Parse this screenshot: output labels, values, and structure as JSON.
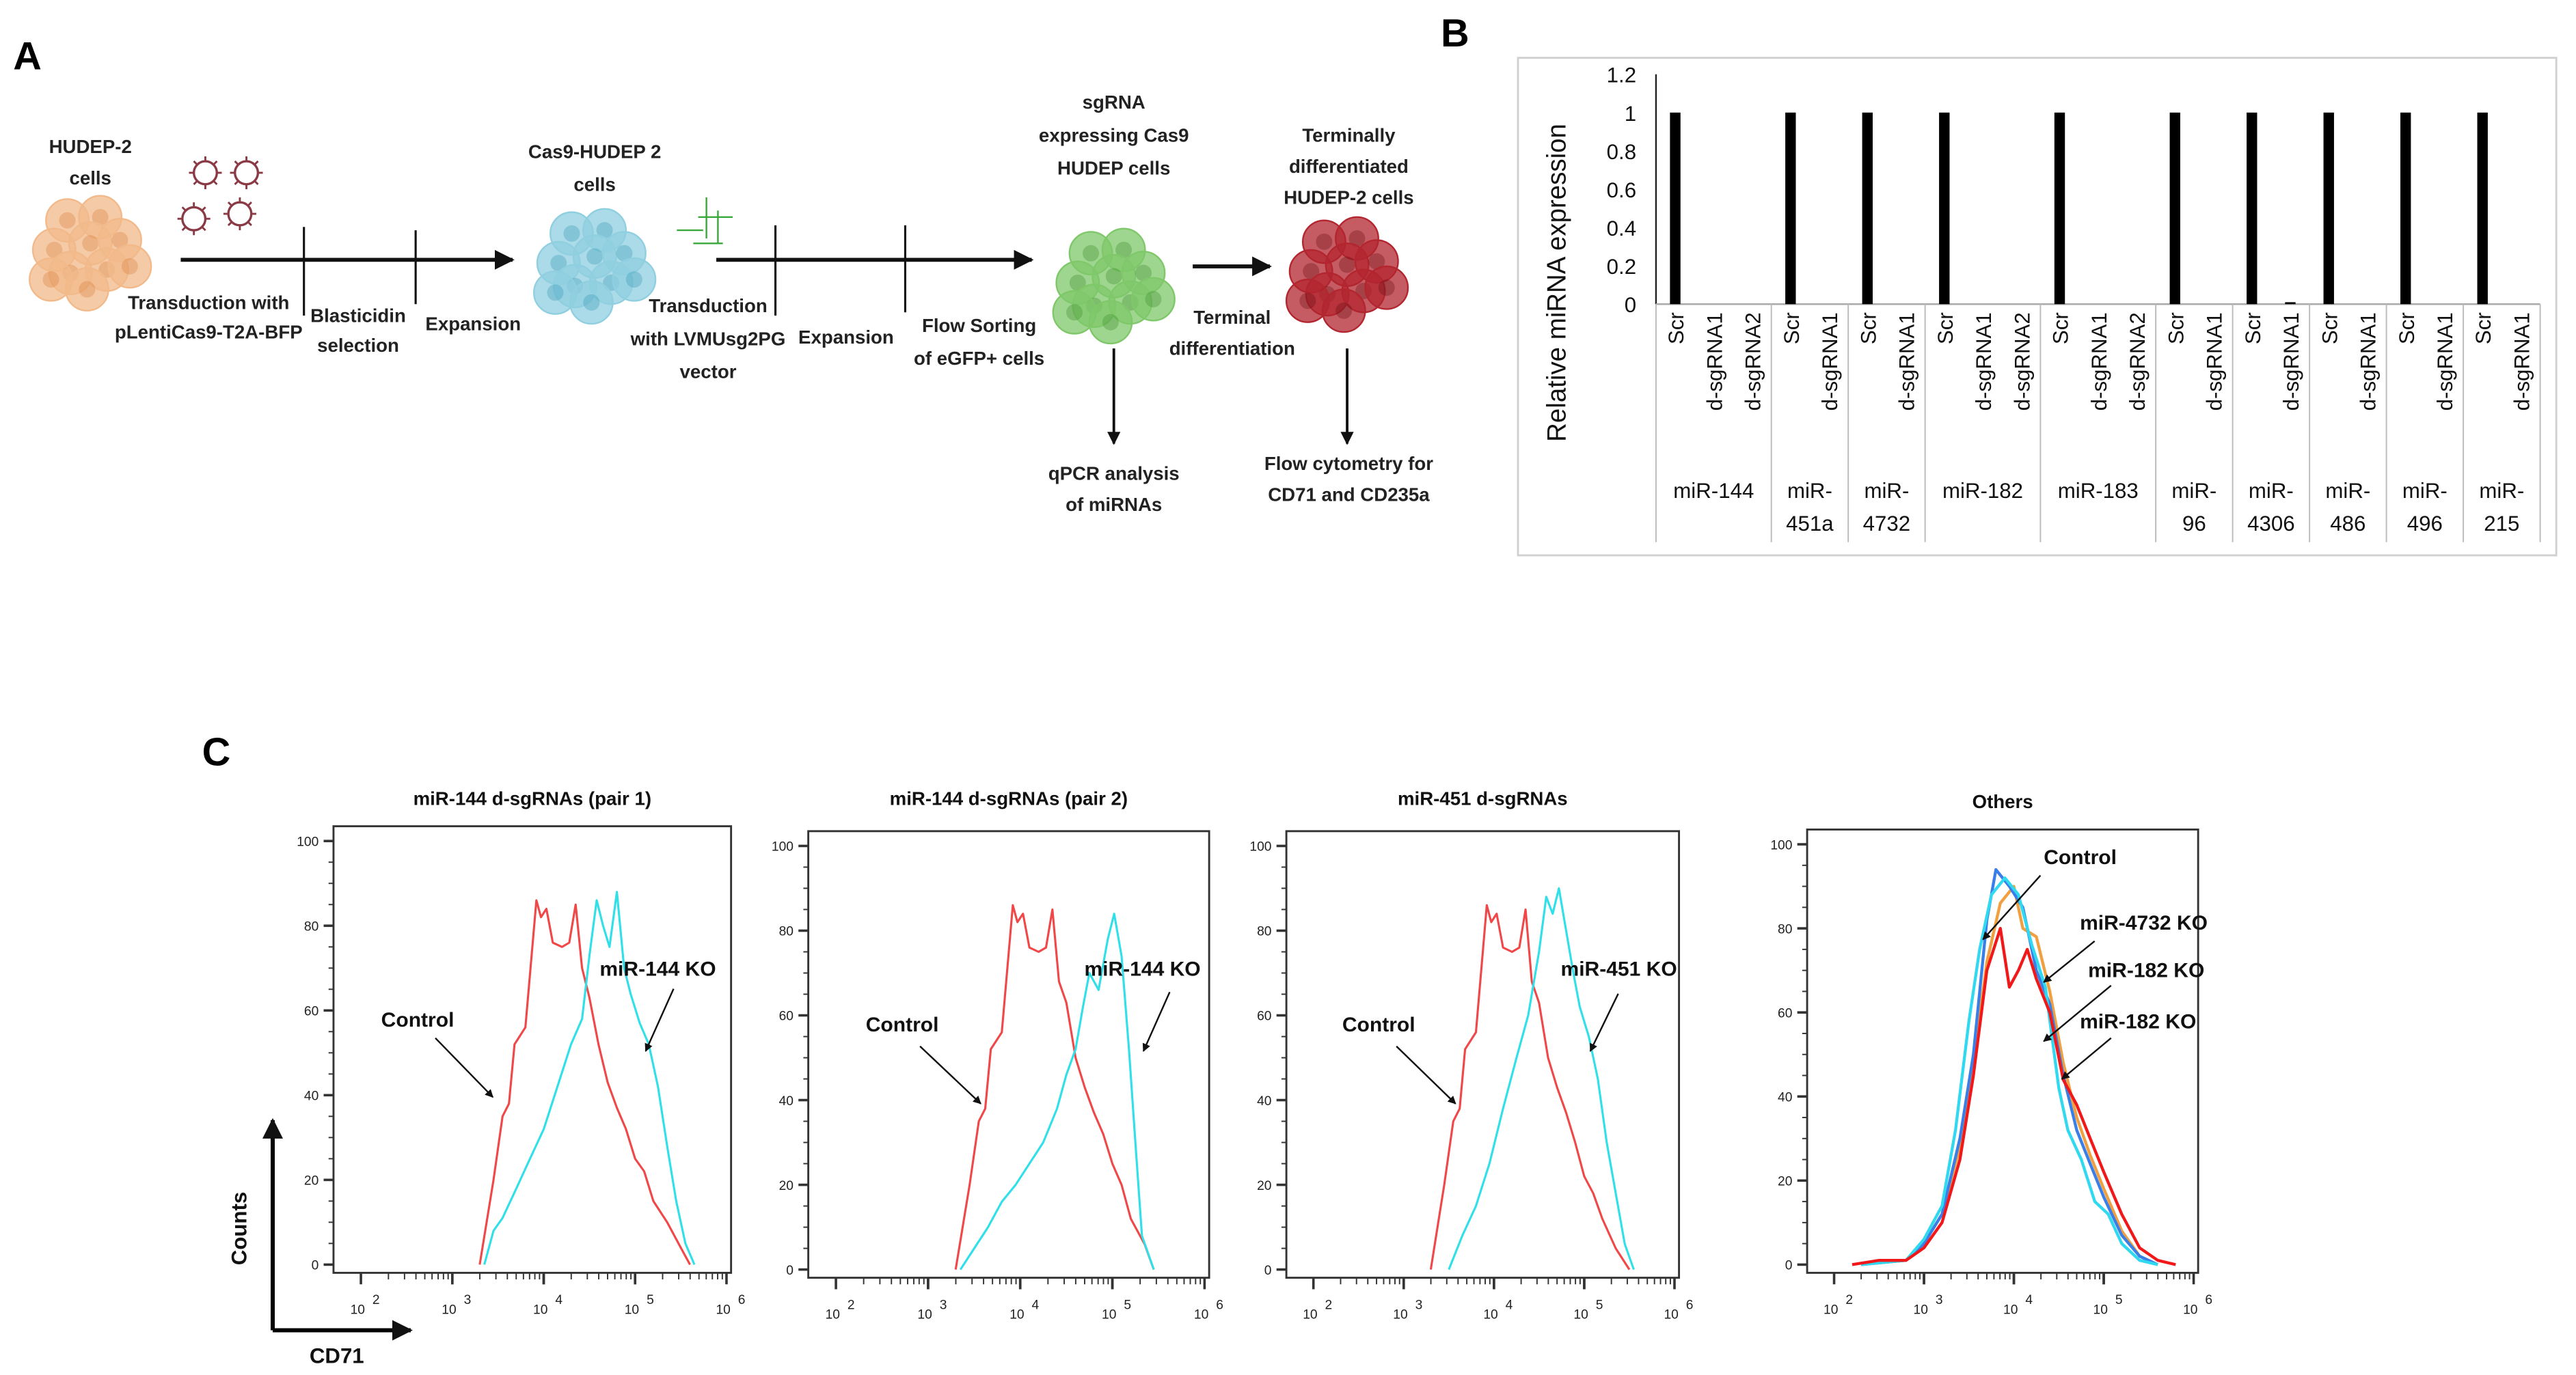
{
  "panelA": {
    "label": "A",
    "steps": {
      "hudep_cells": [
        "HUDEP-2",
        "cells"
      ],
      "transduction1": [
        "Transduction with",
        "pLentiCas9-T2A-BFP"
      ],
      "blasticidin": [
        "Blasticidin",
        "selection"
      ],
      "expansion1": "Expansion",
      "cas9_cells": [
        "Cas9-HUDEP 2",
        "cells"
      ],
      "transduction2": [
        "Transduction",
        "with LVMUsg2PG",
        "vector"
      ],
      "expansion2": "Expansion",
      "flow_sorting": [
        "Flow Sorting",
        "of eGFP+ cells"
      ],
      "sgrna_cells": [
        "sgRNA",
        "expressing Cas9",
        "HUDEP cells"
      ],
      "terminal_cells": [
        "Terminally",
        "differentiated",
        "HUDEP-2 cells"
      ],
      "terminal_diff": [
        "Terminal",
        "differentiation"
      ],
      "qpcr": [
        "qPCR analysis",
        "of miRNAs"
      ],
      "flow_cytometry": [
        "Flow cytometry for",
        "CD71 and CD235a"
      ]
    },
    "colors": {
      "hudep": "#f2b98a",
      "cas9": "#8fcfe0",
      "sgrna": "#7fc86a",
      "terminal": "#b3262f",
      "virus": "#8a3a45",
      "vector": "#3aa83a"
    }
  },
  "panelB": {
    "label": "B"
  },
  "panelC": {
    "label": "C",
    "y_axis_arrow_label": "Counts",
    "x_axis_arrow_label": "CD71"
  },
  "chart_data": [
    {
      "type": "bar",
      "title": "",
      "ylabel": "Relative miRNA expression",
      "ylim": [
        0,
        1.2
      ],
      "yticks": [
        "0",
        "0.2",
        "0.4",
        "0.6",
        "0.8",
        "1",
        "1.2"
      ],
      "groups": [
        {
          "name": [
            "miR-144"
          ],
          "samples": [
            "Scr",
            "d-sgRNA1",
            "d-sgRNA2"
          ],
          "values": [
            1,
            0,
            0
          ]
        },
        {
          "name": [
            "miR-",
            "451a"
          ],
          "samples": [
            "Scr",
            "d-sgRNA1"
          ],
          "values": [
            1,
            0
          ]
        },
        {
          "name": [
            "miR-",
            "4732"
          ],
          "samples": [
            "Scr",
            "d-sgRNA1"
          ],
          "values": [
            1,
            0
          ]
        },
        {
          "name": [
            "miR-182"
          ],
          "samples": [
            "Scr",
            "d-sgRNA1",
            "d-sgRNA2"
          ],
          "values": [
            1,
            0,
            0
          ]
        },
        {
          "name": [
            "miR-183"
          ],
          "samples": [
            "Scr",
            "d-sgRNA1",
            "d-sgRNA2"
          ],
          "values": [
            1,
            0,
            0
          ]
        },
        {
          "name": [
            "miR-",
            "96"
          ],
          "samples": [
            "Scr",
            "d-sgRNA1"
          ],
          "values": [
            1,
            0
          ]
        },
        {
          "name": [
            "miR-",
            "4306"
          ],
          "samples": [
            "Scr",
            "d-sgRNA1"
          ],
          "values": [
            1,
            0.01
          ]
        },
        {
          "name": [
            "miR-",
            "486"
          ],
          "samples": [
            "Scr",
            "d-sgRNA1"
          ],
          "values": [
            1,
            0
          ]
        },
        {
          "name": [
            "miR-",
            "496"
          ],
          "samples": [
            "Scr",
            "d-sgRNA1"
          ],
          "values": [
            1,
            0
          ]
        },
        {
          "name": [
            "miR-",
            "215"
          ],
          "samples": [
            "Scr",
            "d-sgRNA1"
          ],
          "values": [
            1,
            0
          ]
        }
      ],
      "bar_color": "#000000"
    },
    {
      "type": "line",
      "title": "miR-144 d-sgRNAs  (pair 1)",
      "xscale": "log10",
      "xlim_log10": [
        1.7,
        6.05
      ],
      "ylim": [
        0,
        100
      ],
      "xticks": [
        "2",
        "3",
        "4",
        "5",
        "6"
      ],
      "yticks": [
        "0",
        "20",
        "40",
        "60",
        "80",
        "100"
      ],
      "series": [
        {
          "name": "Control",
          "color": "#f04848",
          "x_log10": [
            3.3,
            3.45,
            3.55,
            3.62,
            3.68,
            3.8,
            3.92,
            3.97,
            4.03,
            4.1,
            4.2,
            4.28,
            4.35,
            4.42,
            4.5,
            4.6,
            4.7,
            4.8,
            4.9,
            5.0,
            5.1,
            5.2,
            5.35,
            5.5,
            5.6
          ],
          "y": [
            0,
            20,
            35,
            38,
            52,
            56,
            86,
            82,
            84,
            76,
            75,
            76,
            85,
            70,
            63,
            52,
            43,
            37,
            32,
            25,
            22,
            15,
            10,
            4,
            0
          ]
        },
        {
          "name": "miR-144 KO",
          "color": "#30e0e8",
          "x_log10": [
            3.35,
            3.45,
            3.55,
            3.7,
            3.85,
            4.0,
            4.15,
            4.3,
            4.42,
            4.5,
            4.58,
            4.65,
            4.72,
            4.8,
            4.88,
            4.95,
            5.05,
            5.15,
            5.25,
            5.35,
            5.45,
            5.55,
            5.65
          ],
          "y": [
            0,
            8,
            11,
            18,
            25,
            32,
            42,
            52,
            58,
            73,
            86,
            80,
            75,
            88,
            70,
            64,
            57,
            52,
            42,
            28,
            15,
            5,
            0
          ]
        }
      ],
      "annotations": [
        "Control",
        "miR-144 KO"
      ]
    },
    {
      "type": "line",
      "title": "miR-144 d-sgRNAs  (pair 2)",
      "xscale": "log10",
      "xlim_log10": [
        1.7,
        6.05
      ],
      "ylim": [
        0,
        100
      ],
      "xticks": [
        "2",
        "3",
        "4",
        "5",
        "6"
      ],
      "yticks": [
        "0",
        "20",
        "40",
        "60",
        "80",
        "100"
      ],
      "series": [
        {
          "name": "Control",
          "color": "#f04848",
          "x_log10": [
            3.3,
            3.45,
            3.55,
            3.62,
            3.68,
            3.8,
            3.92,
            3.97,
            4.03,
            4.1,
            4.2,
            4.28,
            4.35,
            4.42,
            4.5,
            4.6,
            4.7,
            4.8,
            4.9,
            5.0,
            5.1,
            5.2,
            5.35,
            5.45
          ],
          "y": [
            0,
            20,
            35,
            38,
            52,
            56,
            86,
            82,
            84,
            76,
            75,
            76,
            85,
            68,
            63,
            50,
            43,
            37,
            32,
            25,
            20,
            12,
            6,
            0
          ]
        },
        {
          "name": "miR-144 KO",
          "color": "#30e0e8",
          "x_log10": [
            3.35,
            3.5,
            3.65,
            3.8,
            3.95,
            4.1,
            4.25,
            4.4,
            4.5,
            4.6,
            4.68,
            4.75,
            4.85,
            4.95,
            5.02,
            5.1,
            5.18,
            5.25,
            5.32,
            5.45
          ],
          "y": [
            0,
            5,
            10,
            16,
            20,
            25,
            30,
            38,
            46,
            52,
            62,
            70,
            66,
            78,
            84,
            74,
            52,
            30,
            8,
            0
          ]
        }
      ],
      "annotations": [
        "Control",
        "miR-144 KO"
      ]
    },
    {
      "type": "line",
      "title": "miR-451 d-sgRNAs",
      "xscale": "log10",
      "xlim_log10": [
        1.7,
        6.05
      ],
      "ylim": [
        0,
        100
      ],
      "xticks": [
        "2",
        "3",
        "4",
        "5",
        "6"
      ],
      "yticks": [
        "0",
        "20",
        "40",
        "60",
        "80",
        "100"
      ],
      "series": [
        {
          "name": "Control",
          "color": "#f04848",
          "x_log10": [
            3.3,
            3.45,
            3.55,
            3.62,
            3.68,
            3.8,
            3.92,
            3.97,
            4.03,
            4.1,
            4.2,
            4.28,
            4.35,
            4.42,
            4.5,
            4.6,
            4.7,
            4.8,
            4.9,
            5.0,
            5.1,
            5.2,
            5.35,
            5.5
          ],
          "y": [
            0,
            20,
            35,
            38,
            52,
            56,
            86,
            82,
            84,
            76,
            75,
            76,
            85,
            68,
            63,
            50,
            43,
            37,
            30,
            22,
            18,
            12,
            5,
            0
          ]
        },
        {
          "name": "miR-451 KO",
          "color": "#30e0e8",
          "x_log10": [
            3.5,
            3.65,
            3.8,
            3.95,
            4.1,
            4.25,
            4.38,
            4.5,
            4.58,
            4.65,
            4.72,
            4.8,
            4.88,
            4.95,
            5.05,
            5.15,
            5.25,
            5.35,
            5.45,
            5.55
          ],
          "y": [
            0,
            8,
            15,
            25,
            38,
            50,
            60,
            75,
            88,
            84,
            90,
            80,
            70,
            62,
            55,
            45,
            30,
            18,
            6,
            0
          ]
        }
      ],
      "annotations": [
        "Control",
        "miR-451 KO"
      ]
    },
    {
      "type": "line",
      "title": "Others",
      "xscale": "log10",
      "xlim_log10": [
        1.7,
        6.05
      ],
      "ylim": [
        0,
        100
      ],
      "xticks": [
        "2",
        "3",
        "4",
        "5",
        "6"
      ],
      "yticks": [
        "0",
        "20",
        "40",
        "60",
        "80",
        "100"
      ],
      "series": [
        {
          "name": "miR-4732 KO",
          "color": "#f0a040",
          "x_log10": [
            2.3,
            2.8,
            3.0,
            3.2,
            3.4,
            3.55,
            3.7,
            3.85,
            4.0,
            4.1,
            4.25,
            4.4,
            4.55,
            4.7,
            4.85,
            5.0,
            5.2,
            5.4,
            5.6
          ],
          "y": [
            0,
            1,
            5,
            12,
            28,
            48,
            72,
            86,
            90,
            80,
            78,
            65,
            48,
            35,
            26,
            18,
            8,
            2,
            0
          ]
        },
        {
          "name": "miR-182 KO",
          "color": "#3a7ee8",
          "x_log10": [
            2.3,
            2.8,
            3.0,
            3.2,
            3.4,
            3.55,
            3.7,
            3.8,
            3.95,
            4.1,
            4.25,
            4.4,
            4.55,
            4.7,
            4.85,
            5.0,
            5.2,
            5.4,
            5.6
          ],
          "y": [
            0,
            1,
            5,
            12,
            30,
            50,
            82,
            94,
            90,
            85,
            70,
            62,
            45,
            32,
            24,
            16,
            7,
            2,
            0
          ]
        },
        {
          "name": "miR-182 KO",
          "color": "#30d8f0",
          "x_log10": [
            2.3,
            2.8,
            3.0,
            3.2,
            3.35,
            3.5,
            3.62,
            3.75,
            3.9,
            4.05,
            4.2,
            4.35,
            4.5,
            4.6,
            4.75,
            4.9,
            5.05,
            5.2,
            5.4,
            5.6
          ],
          "y": [
            0,
            1,
            6,
            14,
            32,
            58,
            75,
            88,
            92,
            88,
            76,
            66,
            42,
            32,
            25,
            15,
            12,
            5,
            1,
            0
          ]
        },
        {
          "name": "Control",
          "color": "#f01818",
          "x_log10": [
            2.2,
            2.5,
            2.8,
            3.0,
            3.2,
            3.4,
            3.55,
            3.7,
            3.85,
            3.95,
            4.05,
            4.15,
            4.25,
            4.4,
            4.55,
            4.7,
            4.85,
            5.0,
            5.2,
            5.4,
            5.6,
            5.8
          ],
          "y": [
            0,
            1,
            1,
            4,
            10,
            25,
            45,
            70,
            80,
            66,
            70,
            75,
            68,
            60,
            44,
            38,
            30,
            22,
            12,
            4,
            1,
            0
          ]
        }
      ],
      "annotations": [
        "Control",
        "miR-4732 KO",
        "miR-182 KO",
        "miR-182 KO"
      ]
    }
  ]
}
